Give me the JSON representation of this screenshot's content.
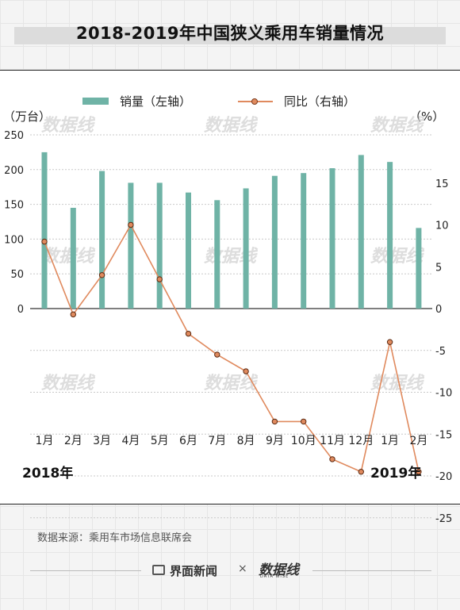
{
  "title": "2018-2019年中国狭义乘用车销量情况",
  "legend": {
    "bar_label": "销量（左轴",
    "bar_paren": "）",
    "line_label": "同比（右轴",
    "line_paren": "）"
  },
  "left_unit": "（万台）",
  "right_unit": "（%）",
  "year_labels": [
    "2018年",
    "2019年"
  ],
  "source": "数据来源：乘用车市场信息联席会",
  "footer": {
    "brand": "界面新闻",
    "cross": "×",
    "logo": "数据线",
    "logo_sub": "DATA WISE"
  },
  "watermark": "数据线",
  "chart_data": {
    "type": "bar+line",
    "categories": [
      "1月",
      "2月",
      "3月",
      "4月",
      "5月",
      "6月",
      "7月",
      "8月",
      "9月",
      "10月",
      "11月",
      "12月",
      "1月",
      "2月"
    ],
    "series": [
      {
        "name": "销量（左轴）",
        "type": "bar",
        "axis": "left",
        "color": "#6fb3a6",
        "values": [
          225,
          145,
          198,
          181,
          181,
          167,
          156,
          173,
          191,
          195,
          202,
          221,
          211,
          116
        ]
      },
      {
        "name": "同比（右轴）",
        "type": "line",
        "axis": "right",
        "color": "#e08a5e",
        "values": [
          8,
          -0.7,
          4,
          10,
          3.5,
          -3,
          -5.5,
          -7.5,
          -13.5,
          -13.5,
          -18,
          -19.5,
          -4,
          -19.5
        ]
      }
    ],
    "left_axis": {
      "ticks": [
        0,
        50,
        100,
        150,
        200,
        250
      ]
    },
    "right_axis": {
      "ticks": [
        15,
        10,
        5,
        0,
        -5,
        -10,
        -15,
        -20,
        -25
      ]
    },
    "grid": true
  }
}
